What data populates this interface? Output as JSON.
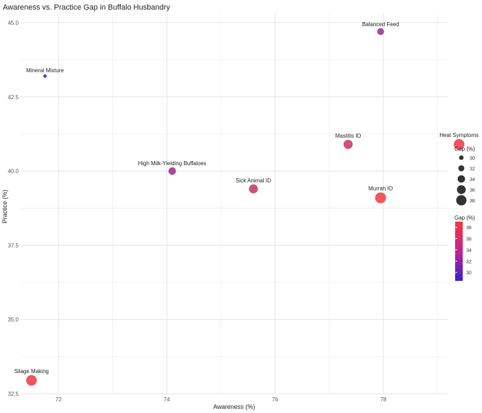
{
  "chart_data": {
    "type": "scatter",
    "title": "Awareness vs. Practice Gap in Buffalo Husbandry",
    "xlabel": "Awareness (%)",
    "ylabel": "Practice (%)",
    "xlim": [
      71.3,
      79.2
    ],
    "ylim": [
      32.5,
      45.3
    ],
    "xticks": [
      72,
      74,
      76,
      78
    ],
    "yticks": [
      32.5,
      35.0,
      37.5,
      40.0,
      42.5,
      45.0
    ],
    "grid": true,
    "points": [
      {
        "label": "Balanced Feed",
        "x": 77.95,
        "y": 44.7,
        "gap": 33.25
      },
      {
        "label": "Mineral Mixture",
        "x": 71.75,
        "y": 43.2,
        "gap": 28.55
      },
      {
        "label": "Mastitis ID",
        "x": 77.35,
        "y": 40.9,
        "gap": 36.45
      },
      {
        "label": "Heat Symptoms",
        "x": 79.4,
        "y": 40.9,
        "gap": 38.5
      },
      {
        "label": "High Milk-Yielding Buffaloes",
        "x": 74.1,
        "y": 40.0,
        "gap": 34.1
      },
      {
        "label": "Sick Animal ID",
        "x": 75.6,
        "y": 39.4,
        "gap": 36.2
      },
      {
        "label": "Murrah ID",
        "x": 77.95,
        "y": 39.1,
        "gap": 38.85
      },
      {
        "label": "Silage Making",
        "x": 71.5,
        "y": 32.95,
        "gap": 38.55
      }
    ],
    "size_legend": {
      "title": "Gap (%)",
      "values": [
        30,
        32,
        34,
        36,
        38
      ]
    },
    "color_legend": {
      "title": "Gap (%)",
      "values": [
        38,
        36,
        34,
        32,
        30
      ],
      "low_color": "#3a1fd1",
      "high_color": "#f5383f"
    },
    "legend_position": "right"
  }
}
